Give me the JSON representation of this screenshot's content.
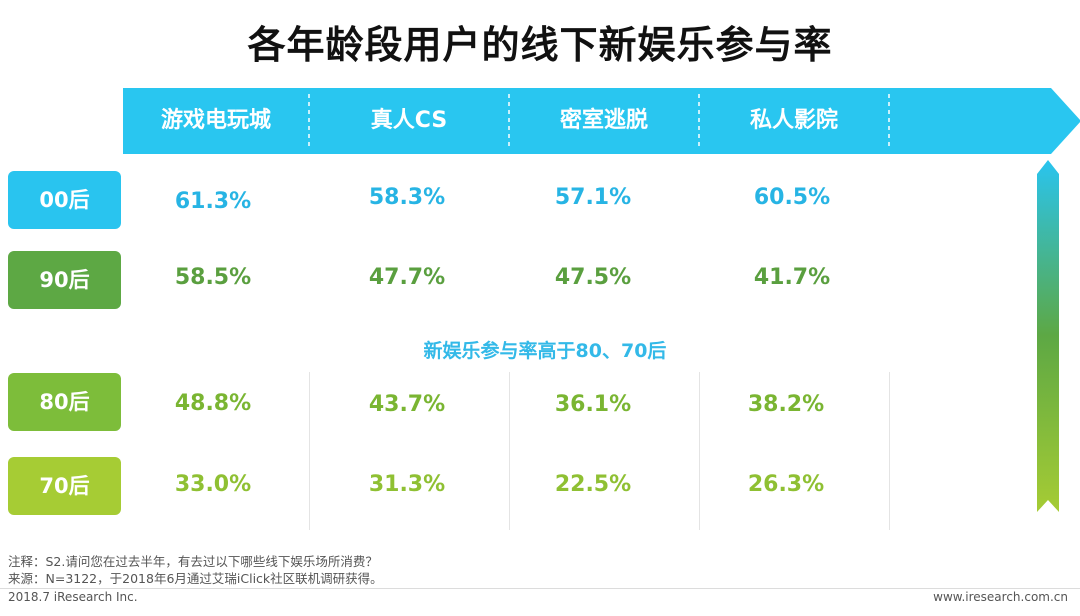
{
  "title": "各年龄段用户的线下新娱乐参与率",
  "subhead": "新娱乐参与率高于80、70后",
  "notes": {
    "note": "注释：S2.请问您在过去半年，有去过以下哪些线下娱乐场所消费？",
    "source": "来源：N=3122，于2018年6月通过艾瑞iClick社区联机调研获得。"
  },
  "footer": {
    "left": "2018.7 iResearch Inc.",
    "right": "www.iresearch.com.cn"
  },
  "colors": {
    "header": "#29c6f0",
    "row_00": "#29c4ef",
    "row_90": "#5da844",
    "row_80": "#7dbd3a",
    "row_70": "#a6cc34",
    "text_00": "#27b4e4",
    "text_90": "#5a9f3f",
    "text_80": "#7ab532",
    "text_70": "#8fc033"
  },
  "chart_data": {
    "type": "table",
    "title": "各年龄段用户的线下新娱乐参与率",
    "columns": [
      "游戏电玩城",
      "真人CS",
      "密室逃脱",
      "私人影院"
    ],
    "rows": [
      {
        "name": "00后",
        "values": [
          "61.3%",
          "58.3%",
          "57.1%",
          "60.5%"
        ]
      },
      {
        "name": "90后",
        "values": [
          "58.5%",
          "47.7%",
          "47.5%",
          "41.7%"
        ]
      },
      {
        "name": "80后",
        "values": [
          "48.8%",
          "43.7%",
          "36.1%",
          "38.2%"
        ]
      },
      {
        "name": "70后",
        "values": [
          "33.0%",
          "31.3%",
          "22.5%",
          "26.3%"
        ]
      }
    ]
  }
}
